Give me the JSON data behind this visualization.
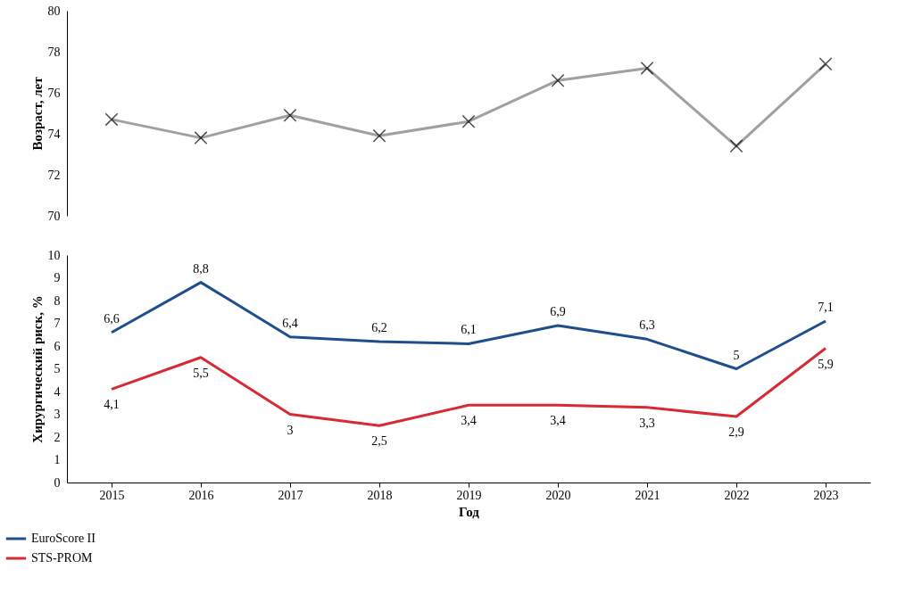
{
  "chart_data": [
    {
      "type": "line",
      "ylabel": "Возраст, лет",
      "categories": [
        "2015",
        "2016",
        "2017",
        "2018",
        "2019",
        "2020",
        "2021",
        "2022",
        "2023"
      ],
      "ylim": [
        70,
        80
      ],
      "yticks": [
        70,
        72,
        74,
        76,
        78,
        80
      ],
      "tick_labels": "y",
      "marker": "cross",
      "grid": false,
      "series": [
        {
          "color": "#a0a0a0",
          "values": [
            74.7,
            73.8,
            74.9,
            73.9,
            74.6,
            76.6,
            77.2,
            73.4,
            77.4
          ]
        }
      ]
    },
    {
      "type": "line",
      "xlabel": "Год",
      "ylabel": "Хирургический риск, %",
      "categories": [
        "2015",
        "2016",
        "2017",
        "2018",
        "2019",
        "2020",
        "2021",
        "2022",
        "2023"
      ],
      "ylim": [
        0,
        10
      ],
      "yticks": [
        0,
        1,
        2,
        3,
        4,
        5,
        6,
        7,
        8,
        9,
        10
      ],
      "marker": "none",
      "grid": false,
      "legend": "bottom left",
      "series": [
        {
          "name": "EuroScore II",
          "color": "#1f4e8c",
          "values": [
            6.6,
            8.8,
            6.4,
            6.2,
            6.1,
            6.9,
            6.3,
            5,
            7.1
          ],
          "value_labels": [
            "6,6",
            "8,8",
            "6,4",
            "6,2",
            "6,1",
            "6,9",
            "6,3",
            "5",
            "7,1"
          ]
        },
        {
          "name": "STS-PROM",
          "color": "#d62a35",
          "values": [
            4.1,
            5.5,
            3,
            2.5,
            3.4,
            3.4,
            3.3,
            2.9,
            5.9
          ],
          "value_labels": [
            "4,1",
            "5,5",
            "3",
            "2,5",
            "3,4",
            "3,4",
            "3,3",
            "2,9",
            "5,9"
          ]
        }
      ]
    }
  ]
}
